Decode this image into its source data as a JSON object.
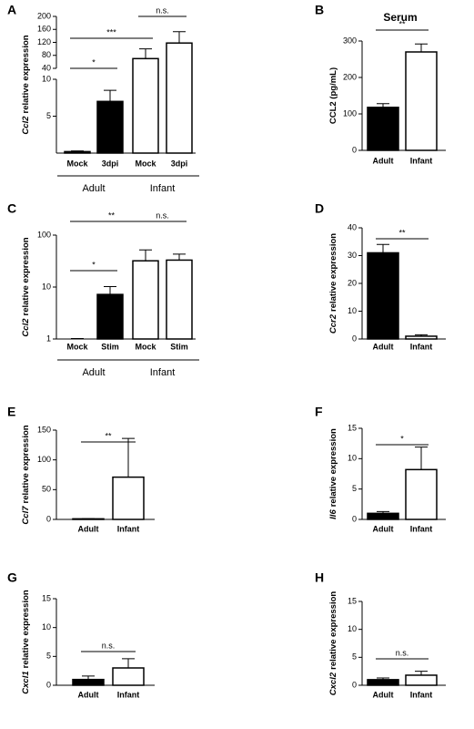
{
  "chart_data": [
    {
      "type": "bar",
      "label": "A",
      "ylabel_gene": "Ccl2",
      "ylabel": "relative expression",
      "categories": [
        "Mock",
        "3dpi",
        "Mock",
        "3dpi"
      ],
      "values": [
        0.2,
        7,
        70,
        118
      ],
      "errors": [
        0.1,
        1.5,
        30,
        35
      ],
      "colors": [
        "#000000",
        "#000000",
        "#ffffff",
        "#ffffff"
      ],
      "ylim": [
        0,
        200
      ],
      "ybreak": [
        10,
        40
      ],
      "yticks": [
        5,
        10,
        40,
        80,
        120,
        160,
        200
      ],
      "groups": [
        {
          "name": "Adult",
          "span": [
            0,
            1
          ]
        },
        {
          "name": "Infant",
          "span": [
            2,
            3
          ]
        }
      ],
      "annotations": [
        {
          "text": "*",
          "span": [
            0,
            1
          ]
        },
        {
          "text": "***",
          "span": [
            0,
            2
          ]
        },
        {
          "text": "n.s.",
          "span": [
            2,
            3
          ]
        }
      ]
    },
    {
      "type": "bar",
      "label": "B",
      "title": "Serum",
      "ylabel": "CCL2 (pg/mL)",
      "categories": [
        "Adult",
        "Infant"
      ],
      "values": [
        118,
        270
      ],
      "errors": [
        10,
        22
      ],
      "colors": [
        "#000000",
        "#ffffff"
      ],
      "ylim": [
        0,
        300
      ],
      "yticks": [
        0,
        100,
        200,
        300
      ],
      "annotations": [
        {
          "text": "**",
          "span": [
            0,
            1
          ]
        }
      ]
    },
    {
      "type": "bar",
      "label": "C",
      "ylabel_gene": "Ccl2",
      "ylabel": "relative expression",
      "categories": [
        "Mock",
        "Stim",
        "Mock",
        "Stim"
      ],
      "values": [
        1.0,
        7.2,
        32,
        33
      ],
      "errors": [
        0.02,
        3,
        20,
        10
      ],
      "colors": [
        "#000000",
        "#000000",
        "#ffffff",
        "#ffffff"
      ],
      "log_y": true,
      "ylim": [
        1,
        100
      ],
      "yticks": [
        1,
        10,
        100
      ],
      "groups": [
        {
          "name": "Adult",
          "span": [
            0,
            1
          ]
        },
        {
          "name": "Infant",
          "span": [
            2,
            3
          ]
        }
      ],
      "annotations": [
        {
          "text": "*",
          "span": [
            0,
            1
          ]
        },
        {
          "text": "**",
          "span": [
            0,
            2
          ]
        },
        {
          "text": "n.s.",
          "span": [
            2,
            3
          ]
        }
      ]
    },
    {
      "type": "bar",
      "label": "D",
      "ylabel_gene": "Ccr2",
      "ylabel": "relative expression",
      "categories": [
        "Adult",
        "Infant"
      ],
      "values": [
        31,
        1
      ],
      "errors": [
        3,
        0.5
      ],
      "colors": [
        "#000000",
        "#ffffff"
      ],
      "ylim": [
        0,
        40
      ],
      "yticks": [
        0,
        10,
        20,
        30,
        40
      ],
      "annotations": [
        {
          "text": "**",
          "span": [
            0,
            1
          ]
        }
      ]
    },
    {
      "type": "bar",
      "label": "E",
      "ylabel_gene": "Ccl7",
      "ylabel": "relative expression",
      "categories": [
        "Adult",
        "Infant"
      ],
      "values": [
        1,
        71
      ],
      "errors": [
        0.3,
        65
      ],
      "colors": [
        "#000000",
        "#ffffff"
      ],
      "ylim": [
        0,
        150
      ],
      "yticks": [
        0,
        50,
        100,
        150
      ],
      "annotations": [
        {
          "text": "**",
          "span": [
            0,
            1
          ]
        }
      ]
    },
    {
      "type": "bar",
      "label": "F",
      "ylabel_gene": "Il6",
      "ylabel": "relative expression",
      "categories": [
        "Adult",
        "Infant"
      ],
      "values": [
        1,
        8.2
      ],
      "errors": [
        0.3,
        3.7
      ],
      "colors": [
        "#000000",
        "#ffffff"
      ],
      "ylim": [
        0,
        15
      ],
      "yticks": [
        0,
        5,
        10,
        15
      ],
      "annotations": [
        {
          "text": "*",
          "span": [
            0,
            1
          ]
        }
      ]
    },
    {
      "type": "bar",
      "label": "G",
      "ylabel_gene": "Cxcl1",
      "ylabel": "relative expression",
      "categories": [
        "Adult",
        "Infant"
      ],
      "values": [
        1,
        3
      ],
      "errors": [
        0.6,
        1.6
      ],
      "colors": [
        "#000000",
        "#ffffff"
      ],
      "ylim": [
        0,
        15
      ],
      "yticks": [
        0,
        5,
        10,
        15
      ],
      "annotations": [
        {
          "text": "n.s.",
          "span": [
            0,
            1
          ]
        }
      ]
    },
    {
      "type": "bar",
      "label": "H",
      "ylabel_gene": "Cxcl2",
      "ylabel": "relative expression",
      "categories": [
        "Adult",
        "Infant"
      ],
      "values": [
        1,
        1.8
      ],
      "errors": [
        0.3,
        0.7
      ],
      "colors": [
        "#000000",
        "#ffffff"
      ],
      "ylim": [
        0,
        15
      ],
      "yticks": [
        0,
        5,
        10,
        15
      ],
      "annotations": [
        {
          "text": "n.s.",
          "span": [
            0,
            1
          ]
        }
      ]
    }
  ]
}
